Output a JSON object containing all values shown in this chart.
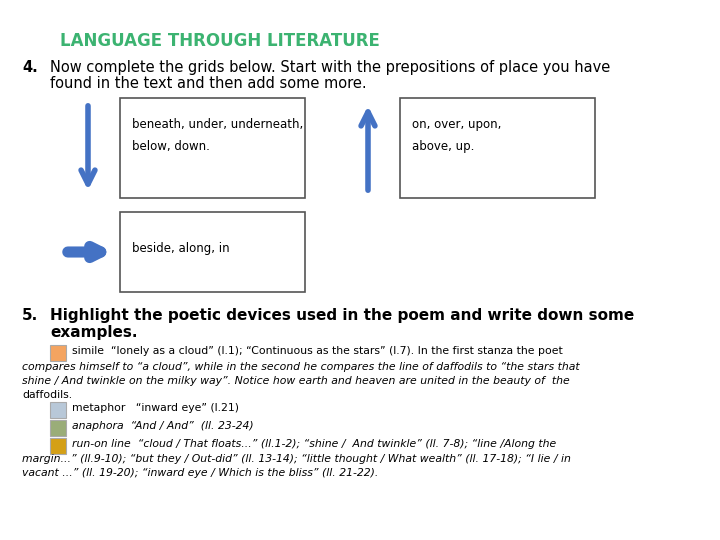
{
  "title": "LANGUAGE THROUGH LITERATURE",
  "title_color": "#3CB371",
  "background_color": "#ffffff",
  "item4_line1": "Now complete the grids below. Start with the prepositions of place you have",
  "item4_line2": "found in the text and then add some more.",
  "box1_line1": "beneath, under, underneath,",
  "box1_line2": "below, down.",
  "box2_line1": "on, over, upon,",
  "box2_line2": "above, up.",
  "box3_text": "beside, along, in",
  "arrow_color": "#4472C4",
  "item5_line1": "Highlight the poetic devices used in the poem and write down some",
  "item5_line2": "examples.",
  "simile_color": "#F4A460",
  "metaphor_color": "#B8C8D8",
  "anaphora_color": "#9AAD78",
  "runon_color": "#D4A017",
  "simile_line1": "simile  “lonely as a cloud” (l.1); “Continuous as the stars” (l.7). In the first stanza the poet",
  "simile_line2": "compares himself to “a cloud”, while in the second he compares the line of daffodils to “the stars that",
  "simile_line3": "shine / And twinkle on the milky way”. Notice how earth and heaven are united in the beauty of  the",
  "simile_line4": "daffodils.",
  "metaphor_line": "metaphor   “inward eye” (l.21)",
  "anaphora_line": "anaphora  “And / And”  (ll. 23-24)",
  "runon_line1": "run-on line  “cloud / That floats...” (ll.1-2); “shine /  And twinkle” (ll. 7-8); “line /Along the",
  "runon_line2": "margin...” (ll.9-10); “but they / Out-did” (ll. 13-14); “little thought / What wealth” (ll. 17-18); “I lie / in",
  "runon_line3": "vacant ...” (ll. 19-20); “inward eye / Which is the bliss” (ll. 21-22)."
}
